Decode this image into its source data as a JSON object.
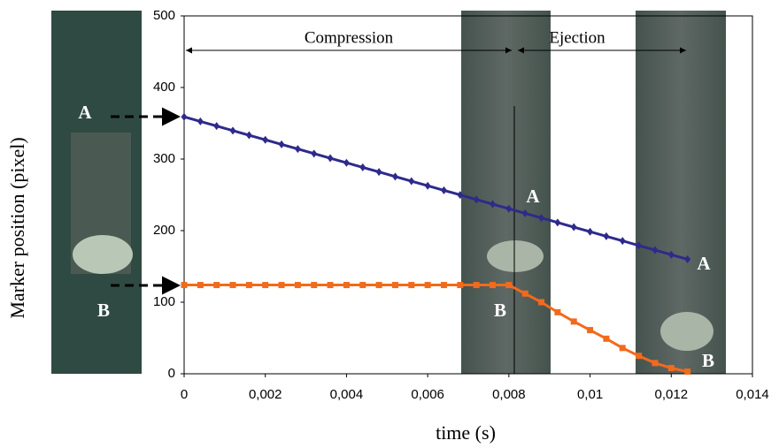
{
  "chart_data": {
    "type": "line",
    "xlabel": "time (s)",
    "ylabel": "Marker position (pixel)",
    "x": [
      0,
      0.0004,
      0.0008,
      0.0012,
      0.0016,
      0.002,
      0.0024,
      0.0028,
      0.0032,
      0.0036,
      0.004,
      0.0044,
      0.0048,
      0.0052,
      0.0056,
      0.006,
      0.0064,
      0.0068,
      0.0072,
      0.0076,
      0.008,
      0.0084,
      0.0088,
      0.0092,
      0.0096,
      0.01,
      0.0104,
      0.0108,
      0.0112,
      0.0116,
      0.012,
      0.0124
    ],
    "series": [
      {
        "name": "A",
        "color": "#2e2a8c",
        "marker": "diamond",
        "values": [
          359,
          352.6,
          346.2,
          339.7,
          333.3,
          326.9,
          320.5,
          314.1,
          307.6,
          301.2,
          294.8,
          288.4,
          282,
          275.5,
          269.1,
          262.7,
          256.3,
          249.9,
          243.4,
          237,
          230.6,
          224.2,
          217.8,
          211.3,
          204.9,
          198.5,
          192.1,
          185.7,
          179.2,
          172.8,
          166.4,
          160
        ]
      },
      {
        "name": "B",
        "color": "#f26a1b",
        "marker": "square",
        "values": [
          124,
          124,
          124,
          124,
          124,
          124,
          124,
          124,
          124,
          124,
          124,
          124,
          124,
          124,
          124,
          124,
          124,
          124,
          124,
          124,
          124,
          112,
          100,
          86,
          73,
          61,
          49,
          36,
          25,
          15,
          8,
          3
        ]
      }
    ],
    "xlim": [
      0,
      0.014
    ],
    "xticks": [
      0,
      {
        "value": 0.002,
        "label": "0,002"
      },
      {
        "value": 0.004,
        "label": "0,004"
      },
      {
        "value": 0.006,
        "label": "0,006"
      },
      {
        "value": 0.008,
        "label": "0,008"
      },
      {
        "value": 0.01,
        "label": "0,01"
      },
      {
        "value": 0.012,
        "label": "0,012"
      },
      {
        "value": 0.014,
        "label": "0,014"
      }
    ],
    "ylim": [
      0,
      500
    ],
    "yticks": [
      0,
      100,
      200,
      300,
      400,
      500
    ],
    "annotations": [
      "Compression",
      "Ejection"
    ],
    "photo_labels": [
      "A",
      "B",
      "A",
      "B",
      "A",
      "B"
    ]
  }
}
